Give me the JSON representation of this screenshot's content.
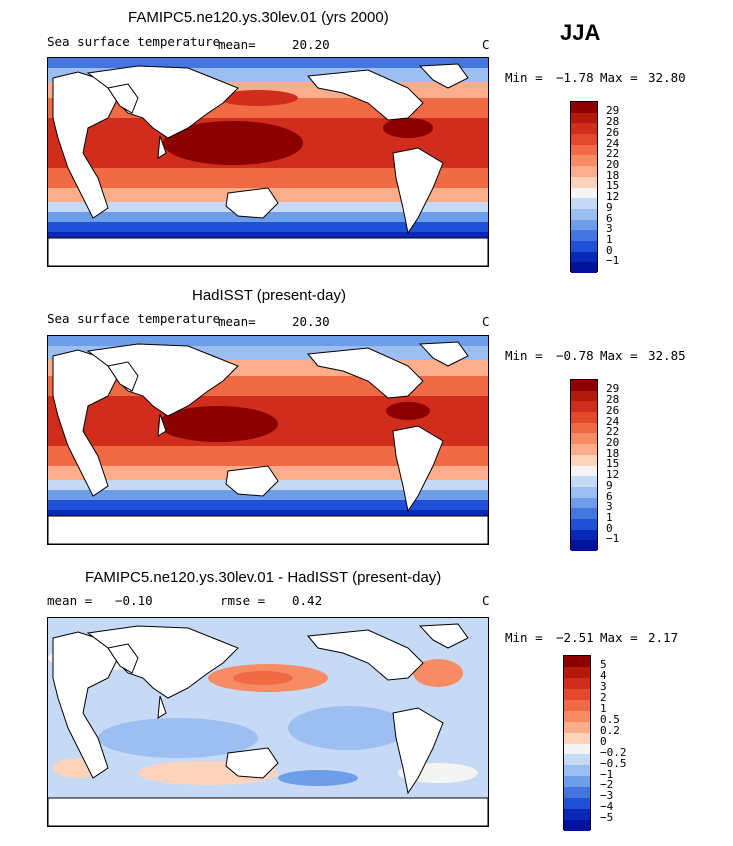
{
  "season": "JJA",
  "units": "C",
  "chart_data": [
    {
      "type": "heatmap",
      "title": "FAMIPC5.ne120.ys.30lev.01 (yrs 2000)",
      "variable": "Sea surface temperature",
      "mean_label": "mean=",
      "mean_value": "20.20",
      "units": "C",
      "min_label": "Min =",
      "min_value": "-1.78",
      "max_label": "Max =",
      "max_value": "32.80",
      "colorbar_levels": [
        "29",
        "28",
        "26",
        "24",
        "22",
        "20",
        "18",
        "15",
        "12",
        "9",
        "6",
        "3",
        "1",
        "0",
        "-1"
      ],
      "colorbar_colors": [
        "#8b0000",
        "#b31a0c",
        "#d12d1d",
        "#e4482d",
        "#f06a45",
        "#f78b64",
        "#fbad8c",
        "#fdd3bb",
        "#f4f4f4",
        "#c6daf6",
        "#9dbef0",
        "#6e9eea",
        "#4576e0",
        "#2050d6",
        "#0a28b8",
        "#00139a"
      ]
    },
    {
      "type": "heatmap",
      "title": "HadISST (present-day)",
      "variable": "Sea surface temperature",
      "mean_label": "mean=",
      "mean_value": "20.30",
      "units": "C",
      "min_label": "Min =",
      "min_value": "-0.78",
      "max_label": "Max =",
      "max_value": "32.85",
      "colorbar_levels": [
        "29",
        "28",
        "26",
        "24",
        "22",
        "20",
        "18",
        "15",
        "12",
        "9",
        "6",
        "3",
        "1",
        "0",
        "-1"
      ],
      "colorbar_colors": [
        "#8b0000",
        "#b31a0c",
        "#d12d1d",
        "#e4482d",
        "#f06a45",
        "#f78b64",
        "#fbad8c",
        "#fdd3bb",
        "#f4f4f4",
        "#c6daf6",
        "#9dbef0",
        "#6e9eea",
        "#4576e0",
        "#2050d6",
        "#0a28b8",
        "#00139a"
      ]
    },
    {
      "type": "heatmap",
      "title": "FAMIPC5.ne120.ys.30lev.01 - HadISST (present-day)",
      "mean_label": "mean =",
      "mean_value": "-0.10",
      "rmse_label": "rmse =",
      "rmse_value": "0.42",
      "units": "C",
      "min_label": "Min =",
      "min_value": "-2.51",
      "max_label": "Max =",
      "max_value": "2.17",
      "colorbar_levels": [
        "5",
        "4",
        "3",
        "2",
        "1",
        "0.5",
        "0.2",
        "0",
        "-0.2",
        "-0.5",
        "-1",
        "-2",
        "-3",
        "-4",
        "-5"
      ],
      "colorbar_colors": [
        "#8b0000",
        "#b31a0c",
        "#d12d1d",
        "#e4482d",
        "#f06a45",
        "#f78b64",
        "#fbad8c",
        "#fdd3bb",
        "#f4f4f4",
        "#c6daf6",
        "#9dbef0",
        "#6e9eea",
        "#4576e0",
        "#2050d6",
        "#0a28b8",
        "#00139a"
      ]
    }
  ]
}
